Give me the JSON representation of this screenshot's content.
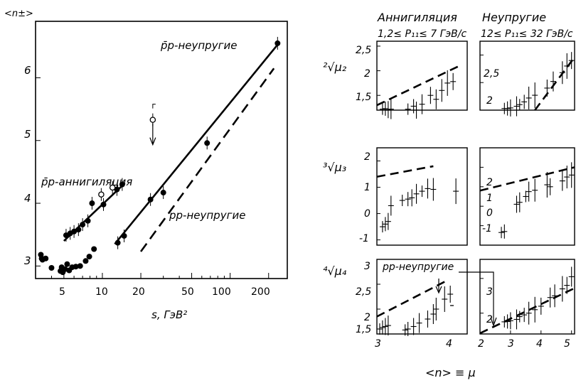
{
  "figure": {
    "left_ylabel": "<n±>",
    "left_xlabel": "s, ГэВ²",
    "right_xlabel": "<n> ≡ μ",
    "col_head_1": "Аннигиляция",
    "col_sub_1": "1,2≤ P₁₁≤ 7 ГэВ/с",
    "col_head_2": "Неупругие",
    "col_sub_2": "12≤ P₁₁≤ 32 ГэВ/с",
    "row_label_2": "²√μ₂",
    "row_label_3": "³√μ₃",
    "row_label_4": "⁴√μ₄",
    "pp_inelastic_note": "pp-неупругие"
  },
  "chart_data": [
    {
      "type": "scatter",
      "xscale": "log",
      "xlabel": "s, ГэВ²",
      "ylabel": "<n±>",
      "xlim": [
        3,
        280
      ],
      "ylim": [
        2.8,
        6.9
      ],
      "xticks": [
        5,
        10,
        20,
        50,
        100,
        200
      ],
      "yticks": [
        3,
        4,
        5,
        6
      ],
      "annotations": [
        "p̄p-неупругие",
        "p̄p-аннигиляция",
        "pp-неупругие"
      ],
      "series": [
        {
          "name": "p̄p-аннигиляция",
          "points": [
            [
              5.2,
              3.49
            ],
            [
              5.6,
              3.52
            ],
            [
              6.0,
              3.55
            ],
            [
              6.5,
              3.58
            ],
            [
              7.0,
              3.66
            ],
            [
              7.7,
              3.72
            ],
            [
              8.3,
              4.0
            ],
            [
              10.2,
              3.98
            ],
            [
              13.0,
              4.22
            ],
            [
              14.3,
              4.3
            ]
          ],
          "fit": [
            [
              5,
              3.4
            ],
            [
              15,
              4.32
            ]
          ]
        },
        {
          "name": "p̄p-неупругие",
          "points": [
            [
              13.2,
              3.37
            ],
            [
              14.8,
              3.48
            ],
            [
              23.8,
              4.06
            ],
            [
              30.0,
              4.17
            ],
            [
              66.0,
              4.96
            ],
            [
              235,
              6.55
            ]
          ],
          "fit": [
            [
              12.5,
              3.35
            ],
            [
              240,
              6.55
            ]
          ]
        },
        {
          "name": "pp-неупругие",
          "fit": [
            [
              20,
              3.23
            ],
            [
              220,
              6.15
            ]
          ]
        },
        {
          "name": "pp",
          "points": [
            [
              3.3,
              3.18
            ],
            [
              3.35,
              3.12
            ],
            [
              3.4,
              3.1
            ],
            [
              3.6,
              3.12
            ],
            [
              4.0,
              2.97
            ],
            [
              4.7,
              2.92
            ],
            [
              4.8,
              2.98
            ],
            [
              4.9,
              2.9
            ],
            [
              5.1,
              2.95
            ],
            [
              5.3,
              3.03
            ],
            [
              5.5,
              2.93
            ],
            [
              5.8,
              2.98
            ],
            [
              6.2,
              2.99
            ],
            [
              6.7,
              3.0
            ],
            [
              7.4,
              3.08
            ],
            [
              7.9,
              3.15
            ],
            [
              8.6,
              3.27
            ]
          ]
        },
        {
          "name": "open",
          "points": [
            [
              9.8,
              4.14
            ],
            [
              12.0,
              4.25
            ],
            [
              24.8,
              5.33
            ]
          ]
        }
      ]
    },
    {
      "type": "scatter",
      "panel": "annihilation-mu2",
      "xlim": [
        3,
        4.6
      ],
      "ylim": [
        1.2,
        2.6
      ],
      "yticks": [
        1.5,
        2,
        2.5
      ],
      "dashed": [
        [
          3.0,
          1.3
        ],
        [
          4.5,
          2.12
        ]
      ],
      "points": [
        [
          3.1,
          1.22
        ],
        [
          3.15,
          1.23
        ],
        [
          3.2,
          1.21
        ],
        [
          3.25,
          1.22
        ],
        [
          3.55,
          1.22
        ],
        [
          3.65,
          1.28
        ],
        [
          3.7,
          1.2
        ],
        [
          3.8,
          1.32
        ],
        [
          3.95,
          1.5
        ],
        [
          4.05,
          1.42
        ],
        [
          4.15,
          1.6
        ],
        [
          4.25,
          1.75
        ],
        [
          4.35,
          1.78
        ]
      ]
    },
    {
      "type": "scatter",
      "panel": "inelastic-mu2",
      "xlim": [
        2,
        5.1
      ],
      "ylim": [
        1.5,
        2.75
      ],
      "yticks": [
        2,
        2.5
      ],
      "dashed": [
        [
          3.8,
          1.5
        ],
        [
          5.1,
          2.46
        ]
      ],
      "points": [
        [
          2.8,
          1.53
        ],
        [
          2.9,
          1.53
        ],
        [
          3.0,
          1.54
        ],
        [
          3.2,
          1.57
        ],
        [
          3.3,
          1.6
        ],
        [
          3.45,
          1.65
        ],
        [
          3.6,
          1.72
        ],
        [
          3.8,
          1.77
        ],
        [
          4.2,
          1.9
        ],
        [
          4.4,
          2.02
        ],
        [
          4.7,
          2.18
        ],
        [
          4.85,
          2.3
        ],
        [
          5.0,
          2.4
        ]
      ]
    },
    {
      "type": "scatter",
      "panel": "annihilation-mu3",
      "xlim": [
        3,
        4.6
      ],
      "ylim": [
        -1.2,
        2.5
      ],
      "yticks": [
        -1,
        0,
        1,
        2
      ],
      "dashed": [
        [
          3.0,
          1.4
        ],
        [
          4.0,
          1.8
        ]
      ],
      "points": [
        [
          3.1,
          -0.5
        ],
        [
          3.15,
          -0.4
        ],
        [
          3.2,
          -0.3
        ],
        [
          3.25,
          0.3
        ],
        [
          3.45,
          0.5
        ],
        [
          3.55,
          0.55
        ],
        [
          3.62,
          0.6
        ],
        [
          3.7,
          0.75
        ],
        [
          3.8,
          0.85
        ],
        [
          3.9,
          0.95
        ],
        [
          4.0,
          0.92
        ],
        [
          4.4,
          0.85
        ]
      ]
    },
    {
      "type": "scatter",
      "panel": "inelastic-mu3",
      "xlim": [
        2,
        5.1
      ],
      "ylim": [
        -2.0,
        3.0
      ],
      "yticks": [
        -1,
        0,
        1,
        2
      ],
      "dashed": [
        [
          2.0,
          0.8
        ],
        [
          5.1,
          2.0
        ]
      ],
      "points": [
        [
          2.7,
          -1.35
        ],
        [
          2.8,
          -1.3
        ],
        [
          3.2,
          0.1
        ],
        [
          3.3,
          0.2
        ],
        [
          3.5,
          0.5
        ],
        [
          3.6,
          0.75
        ],
        [
          3.8,
          0.82
        ],
        [
          4.2,
          1.1
        ],
        [
          4.3,
          1.0
        ],
        [
          4.7,
          1.3
        ],
        [
          4.85,
          1.5
        ],
        [
          5.0,
          1.6
        ]
      ]
    },
    {
      "type": "scatter",
      "panel": "annihilation-mu4",
      "xlim": [
        3,
        4.6
      ],
      "ylim": [
        1.5,
        3.0
      ],
      "yticks": [
        1.5,
        2,
        2.5,
        3
      ],
      "dashed": [
        [
          3.0,
          1.85
        ],
        [
          4.2,
          2.55
        ]
      ],
      "points": [
        [
          3.05,
          1.6
        ],
        [
          3.1,
          1.63
        ],
        [
          3.15,
          1.65
        ],
        [
          3.2,
          1.67
        ],
        [
          3.5,
          1.58
        ],
        [
          3.55,
          1.6
        ],
        [
          3.65,
          1.65
        ],
        [
          3.75,
          1.72
        ],
        [
          3.9,
          1.8
        ],
        [
          4.0,
          1.9
        ],
        [
          4.05,
          2.0
        ],
        [
          4.2,
          2.2
        ],
        [
          4.3,
          2.3
        ]
      ]
    },
    {
      "type": "scatter",
      "panel": "inelastic-mu4",
      "xlim": [
        2,
        5.1
      ],
      "ylim": [
        1.4,
        3.55
      ],
      "yticks": [
        2,
        3
      ],
      "xticks": [
        2,
        3,
        4,
        5
      ],
      "dashed": [
        [
          2.0,
          1.42
        ],
        [
          5.1,
          2.72
        ]
      ],
      "points": [
        [
          2.8,
          1.75
        ],
        [
          2.9,
          1.76
        ],
        [
          3.0,
          1.78
        ],
        [
          3.2,
          1.82
        ],
        [
          3.3,
          1.9
        ],
        [
          3.45,
          1.95
        ],
        [
          3.6,
          2.0
        ],
        [
          3.8,
          2.1
        ],
        [
          4.0,
          2.2
        ],
        [
          4.3,
          2.45
        ],
        [
          4.45,
          2.5
        ],
        [
          4.7,
          2.7
        ],
        [
          4.85,
          2.8
        ],
        [
          5.0,
          3.05
        ]
      ]
    }
  ]
}
